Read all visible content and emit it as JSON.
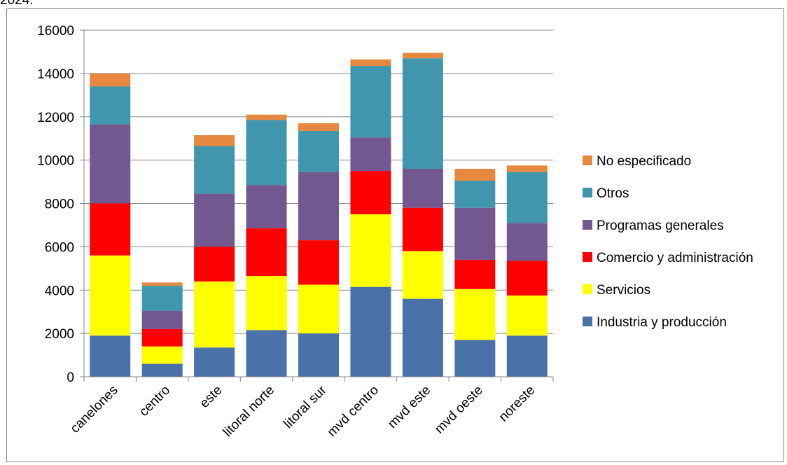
{
  "caption": "2024.",
  "chart_data": {
    "type": "bar",
    "stacked": true,
    "title": "",
    "xlabel": "",
    "ylabel": "",
    "ylim": [
      0,
      16000
    ],
    "yticks": [
      "0",
      "2000",
      "4000",
      "6000",
      "8000",
      "10000",
      "12000",
      "14000",
      "16000"
    ],
    "grid": true,
    "legend_position": "right",
    "categories": [
      "canelones",
      "centro",
      "este",
      "litoral norte",
      "litoral sur",
      "mvd centro",
      "mvd este",
      "mvd oeste",
      "noreste"
    ],
    "series": [
      {
        "name": "Industria y producción",
        "color": "#4a72a8",
        "values": [
          1900,
          600,
          1350,
          2150,
          2000,
          4150,
          3600,
          1700,
          1900
        ]
      },
      {
        "name": "Servicios",
        "color": "#ffff00",
        "values": [
          3700,
          800,
          3050,
          2500,
          2250,
          3350,
          2200,
          2350,
          1850
        ]
      },
      {
        "name": "Comercio y administración",
        "color": "#ff0000",
        "values": [
          2400,
          800,
          1600,
          2200,
          2050,
          2000,
          2000,
          1350,
          1600
        ]
      },
      {
        "name": "Programas generales",
        "color": "#73578f",
        "values": [
          3650,
          850,
          2450,
          2000,
          3150,
          1550,
          1800,
          2400,
          1750
        ]
      },
      {
        "name": "Otros",
        "color": "#4096ad",
        "values": [
          1750,
          1150,
          2200,
          3000,
          1900,
          3300,
          5100,
          1250,
          2350
        ]
      },
      {
        "name": "No especificado",
        "color": "#e6883f",
        "values": [
          600,
          150,
          500,
          250,
          350,
          300,
          250,
          550,
          300
        ]
      }
    ]
  }
}
